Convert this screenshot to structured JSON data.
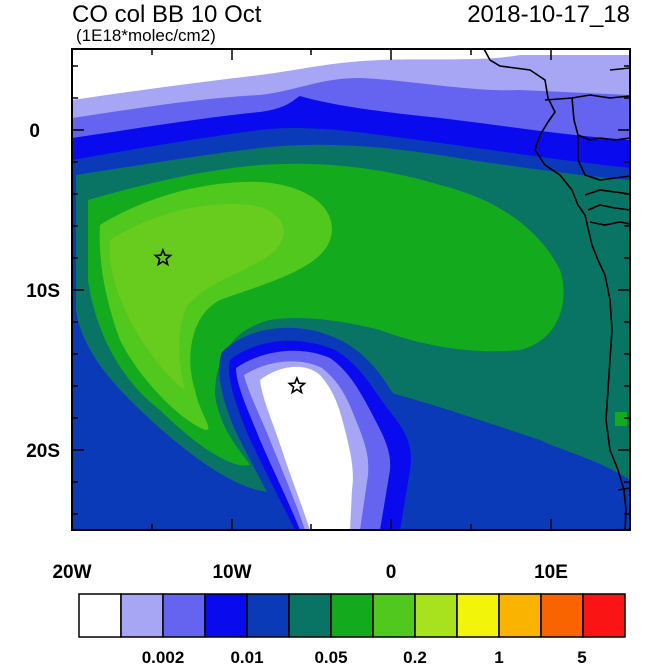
{
  "title": "CO col BB 10 Oct",
  "units": "(1E18*molec/cm2)",
  "valid_time": "2018-10-17_18",
  "axes": {
    "x_ticks": [
      "20W",
      "10W",
      "0",
      "10E"
    ],
    "y_ticks": [
      "0",
      "10S",
      "20S"
    ]
  },
  "colorbar": {
    "colors": [
      "#ffffff",
      "#a6a6f5",
      "#6464f0",
      "#0a0aee",
      "#0a3ab8",
      "#0a7464",
      "#14aa1e",
      "#50c81e",
      "#a8e21e",
      "#f2f50a",
      "#fab400",
      "#fa6400",
      "#fa1414"
    ],
    "labels": [
      "0.002",
      "0.01",
      "0.05",
      "0.2",
      "1",
      "5"
    ]
  },
  "markers": [
    {
      "name": "star-marker-west",
      "lon": -14.3,
      "lat": -8.0
    },
    {
      "name": "star-marker-south",
      "lon": -5.9,
      "lat": -16.0
    }
  ],
  "colors": {
    "frame": "#000000",
    "coast": "#000000"
  }
}
